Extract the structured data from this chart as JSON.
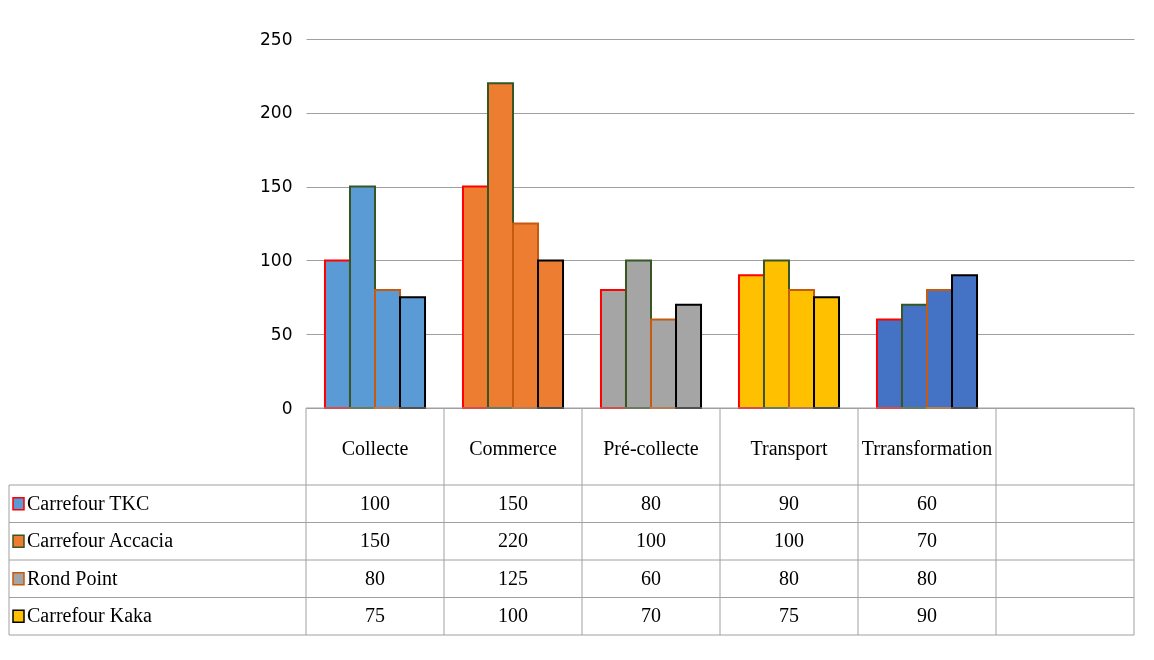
{
  "chart_data": {
    "type": "bar",
    "categories": [
      "Collecte",
      "Commerce",
      "Pré-collecte",
      "Transport",
      "Trransformation",
      null
    ],
    "colors": [
      "#5b9bd5",
      "#ed7d31",
      "#a5a5a5",
      "#ffc000",
      "#4472c4"
    ],
    "series": [
      {
        "name": "Carrefour TKC",
        "color": "#ff0000",
        "values": [
          100,
          150,
          80,
          90,
          60,
          null
        ]
      },
      {
        "name": "Carrefour Accacia",
        "color": "#375623",
        "values": [
          150,
          220,
          100,
          100,
          70,
          null
        ]
      },
      {
        "name": "Rond Point",
        "color": "#c55a11",
        "values": [
          80,
          125,
          60,
          80,
          80,
          null
        ]
      },
      {
        "name": "Carrefour Kaka",
        "color": "#000000",
        "values": [
          75,
          100,
          70,
          75,
          90,
          null
        ]
      }
    ],
    "ylim": [
      0,
      250
    ],
    "yticks": [
      0,
      50,
      100,
      150,
      200,
      250
    ],
    "grid": "y",
    "legend": "bottom",
    "data_labels": true
  }
}
